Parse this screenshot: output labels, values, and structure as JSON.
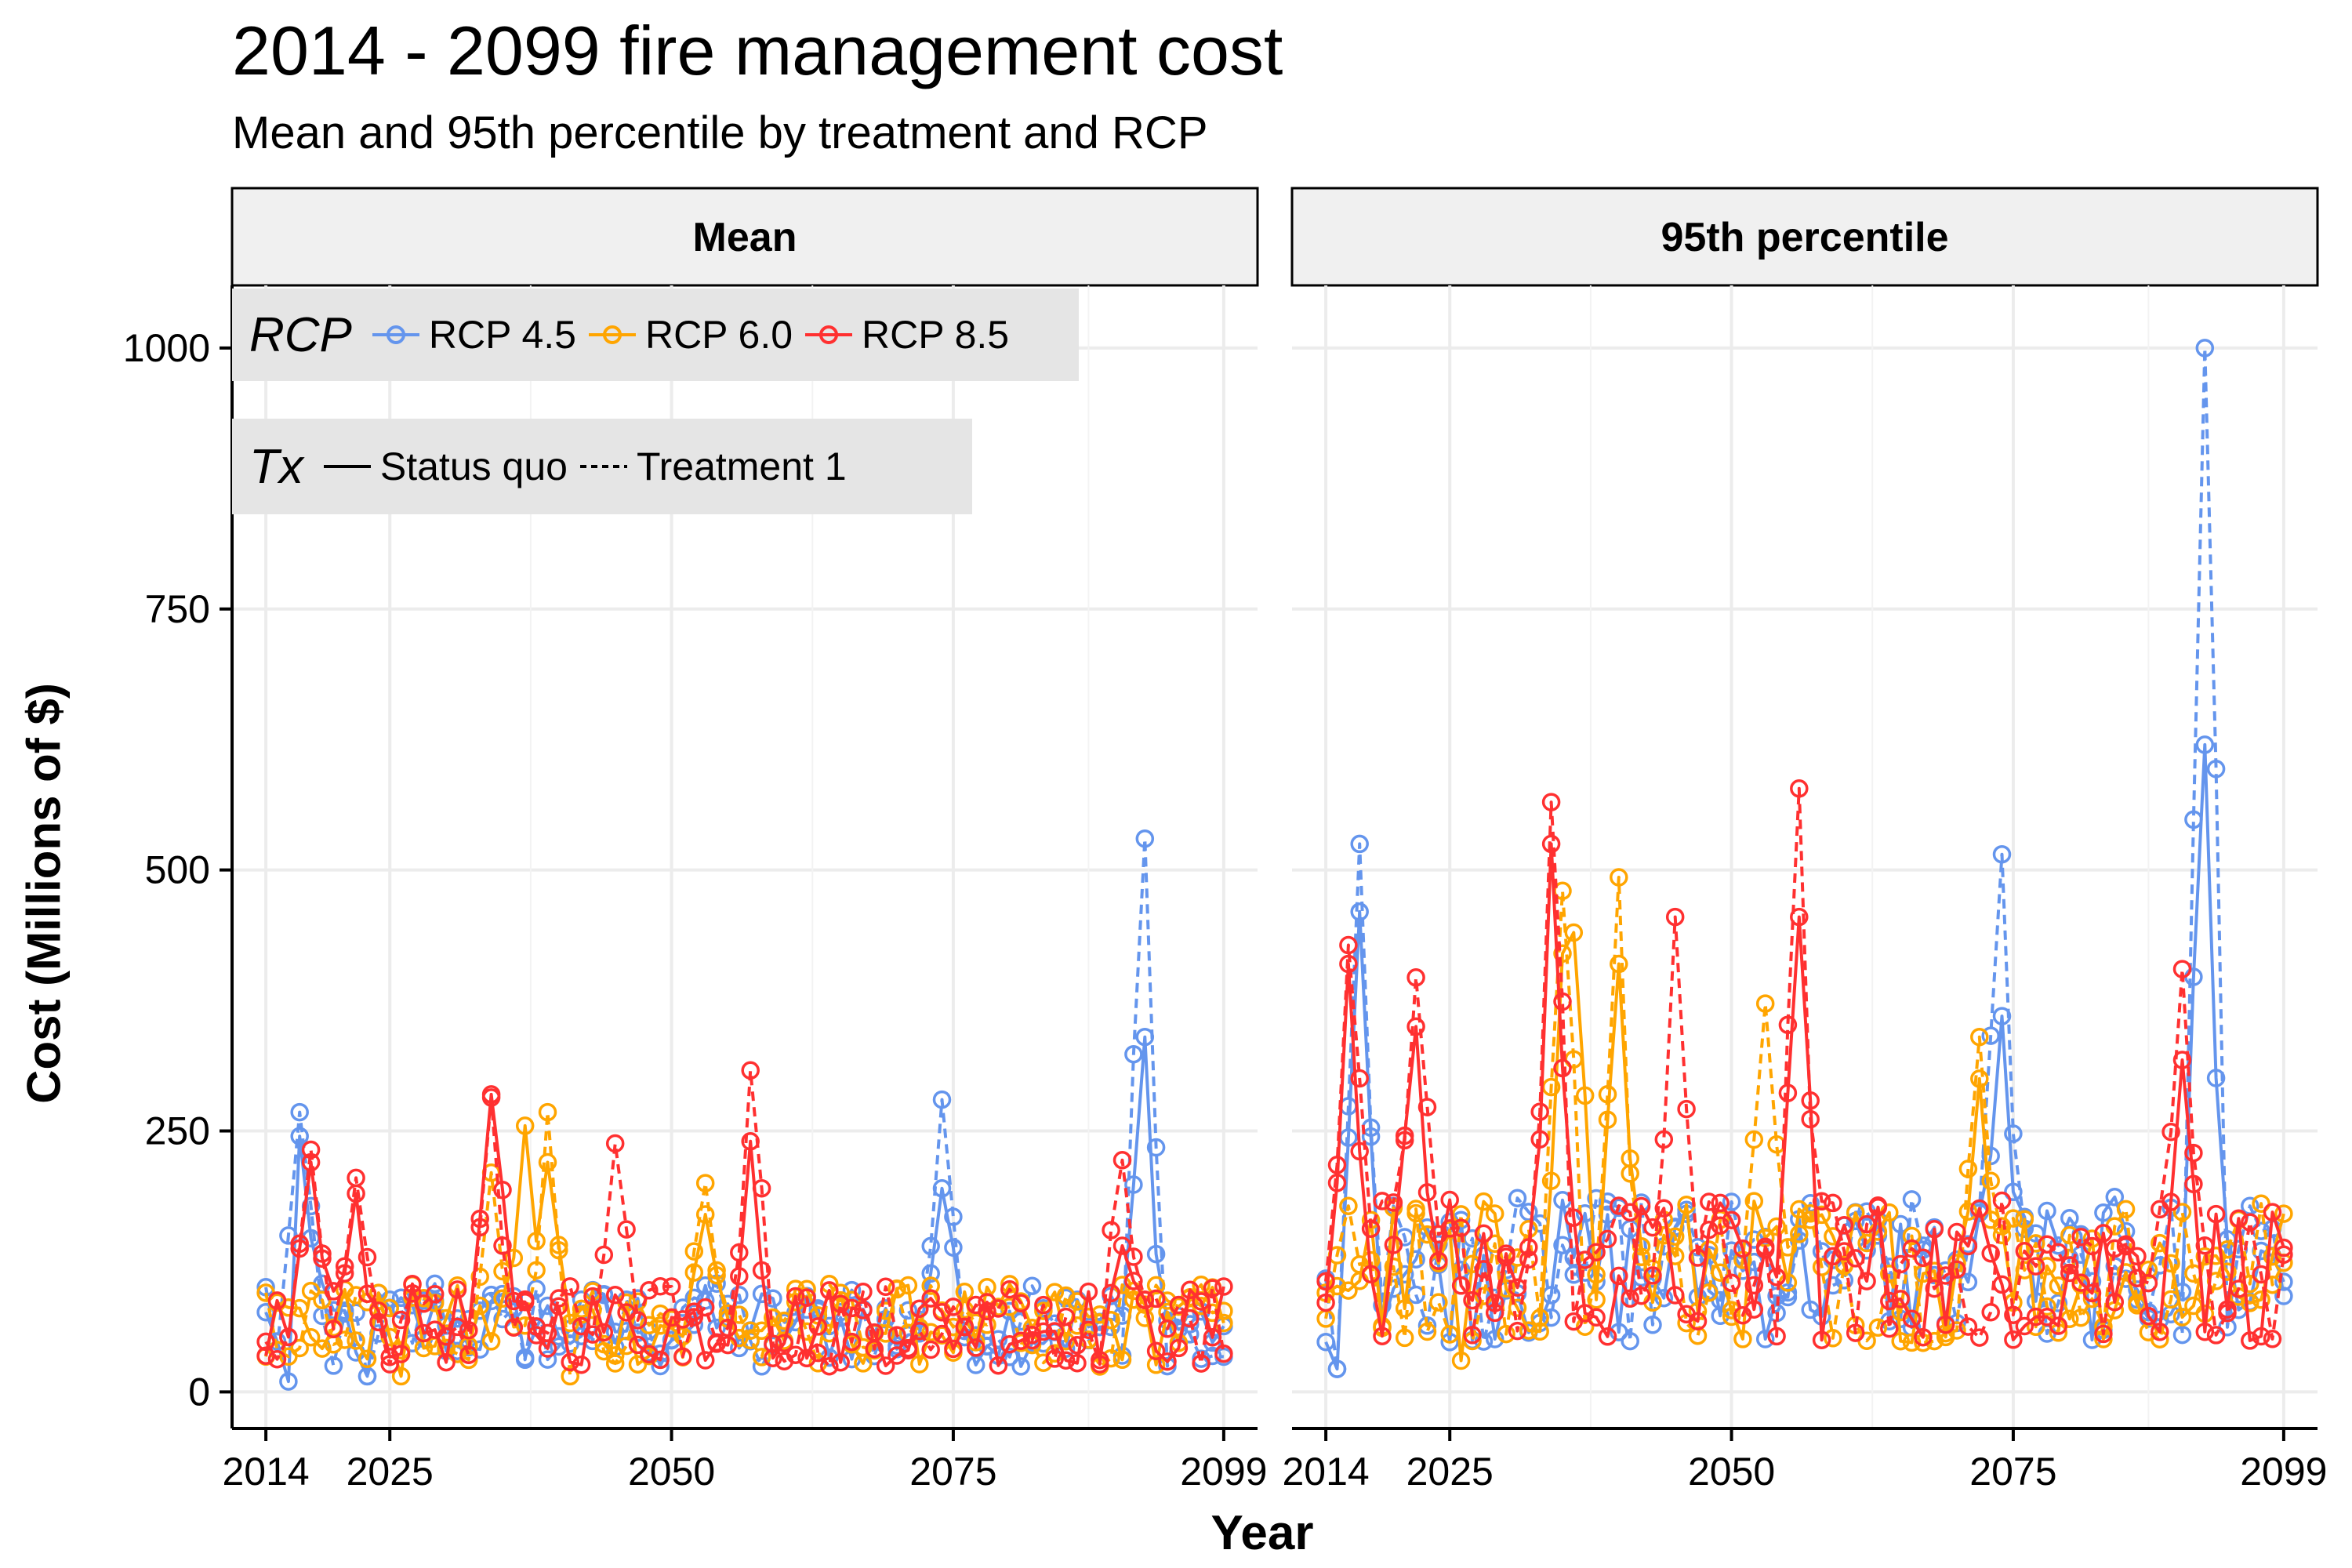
{
  "title": "2014 - 2099 fire management cost",
  "subtitle": "Mean and 95th percentile by treatment and RCP",
  "chart_data": {
    "type": "line",
    "markers": "open-circle",
    "xlabel": "Year",
    "ylabel": "Cost (Millions of $)",
    "xlim": [
      2011,
      2102
    ],
    "ylim": [
      -35,
      1060
    ],
    "x_ticks": [
      2014,
      2025,
      2050,
      2075,
      2099
    ],
    "y_ticks": [
      0,
      250,
      500,
      750,
      1000
    ],
    "grid": true,
    "colors": {
      "RCP 4.5": "#6495ed",
      "RCP 6.0": "#ffa500",
      "RCP 8.5": "#ff3030"
    },
    "legend": {
      "position": "top-left",
      "rcp_title": "RCP",
      "rcp_items": [
        "RCP 4.5",
        "RCP 6.0",
        "RCP 8.5"
      ],
      "tx_title": "Tx",
      "tx_items": [
        "Status quo",
        "Treatment 1"
      ]
    },
    "panels": [
      {
        "name": "Mean",
        "series": [
          {
            "rcp": "RCP 4.5",
            "tx": "Status quo",
            "peaks": [
              [
                2017,
                245
              ],
              [
                2074,
                195
              ],
              [
                2092,
                340
              ]
            ],
            "outliers": [
              [
                2016,
                10
              ],
              [
                2023,
                15
              ]
            ]
          },
          {
            "rcp": "RCP 4.5",
            "tx": "Treatment 1",
            "peaks": [
              [
                2017,
                268
              ],
              [
                2074,
                280
              ],
              [
                2092,
                530
              ]
            ],
            "outliers": [
              [
                2023,
                15
              ]
            ]
          },
          {
            "rcp": "RCP 6.0",
            "tx": "Status quo",
            "peaks": [
              [
                2037,
                255
              ],
              [
                2039,
                220
              ],
              [
                2053,
                170
              ]
            ],
            "outliers": [
              [
                2026,
                15
              ]
            ]
          },
          {
            "rcp": "RCP 6.0",
            "tx": "Treatment 1",
            "peaks": [
              [
                2034,
                210
              ],
              [
                2039,
                268
              ],
              [
                2053,
                200
              ]
            ],
            "outliers": [
              [
                2041,
                15
              ]
            ]
          },
          {
            "rcp": "RCP 8.5",
            "tx": "Status quo",
            "peaks": [
              [
                2018,
                220
              ],
              [
                2022,
                190
              ],
              [
                2034,
                285
              ],
              [
                2057,
                240
              ],
              [
                2090,
                140
              ]
            ],
            "outliers": []
          },
          {
            "rcp": "RCP 8.5",
            "tx": "Treatment 1",
            "peaks": [
              [
                2018,
                232
              ],
              [
                2022,
                205
              ],
              [
                2034,
                282
              ],
              [
                2045,
                238
              ],
              [
                2057,
                308
              ],
              [
                2090,
                222
              ]
            ],
            "outliers": []
          }
        ]
      },
      {
        "name": "95th percentile",
        "series": [
          {
            "rcp": "RCP 4.5",
            "tx": "Status quo",
            "peaks": [
              [
                2017,
                460
              ],
              [
                2074,
                360
              ],
              [
                2092,
                620
              ]
            ],
            "outliers": [
              [
                2015,
                22
              ],
              [
                2092,
                560
              ]
            ]
          },
          {
            "rcp": "RCP 4.5",
            "tx": "Treatment 1",
            "peaks": [
              [
                2017,
                525
              ],
              [
                2074,
                515
              ],
              [
                2092,
                1000
              ]
            ],
            "outliers": [
              [
                2015,
                22
              ]
            ]
          },
          {
            "rcp": "RCP 6.0",
            "tx": "Status quo",
            "peaks": [
              [
                2035,
                420
              ],
              [
                2036,
                440
              ],
              [
                2040,
                410
              ],
              [
                2072,
                300
              ]
            ],
            "outliers": [
              [
                2026,
                30
              ]
            ]
          },
          {
            "rcp": "RCP 6.0",
            "tx": "Treatment 1",
            "peaks": [
              [
                2035,
                480
              ],
              [
                2040,
                493
              ],
              [
                2053,
                372
              ],
              [
                2072,
                340
              ]
            ],
            "outliers": [
              [
                2040,
                35
              ]
            ]
          },
          {
            "rcp": "RCP 8.5",
            "tx": "Status quo",
            "peaks": [
              [
                2016,
                410
              ],
              [
                2022,
                350
              ],
              [
                2034,
                525
              ],
              [
                2056,
                455
              ],
              [
                2090,
                318
              ]
            ],
            "outliers": []
          },
          {
            "rcp": "RCP 8.5",
            "tx": "Treatment 1",
            "peaks": [
              [
                2016,
                428
              ],
              [
                2022,
                397
              ],
              [
                2034,
                565
              ],
              [
                2045,
                455
              ],
              [
                2056,
                578
              ],
              [
                2090,
                405
              ]
            ],
            "outliers": []
          }
        ]
      }
    ]
  }
}
